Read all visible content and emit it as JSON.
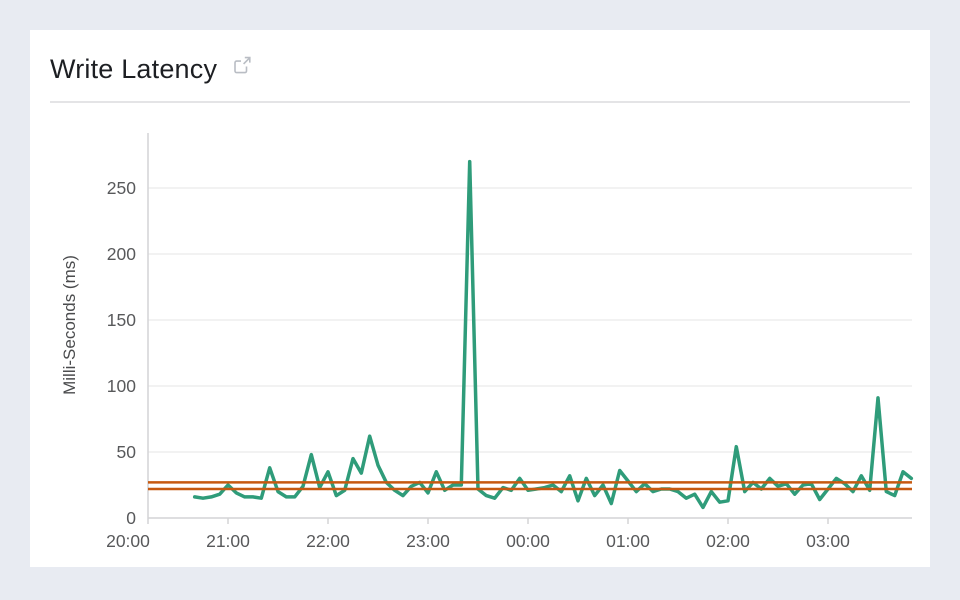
{
  "header": {
    "title": "Write Latency"
  },
  "colors": {
    "accent_line": "#2f9c7a",
    "threshold": "#c65911",
    "grid": "#ededed",
    "axis": "#d4d4d6",
    "tick_text": "#58595b",
    "axis_title_text": "#4a4b4d",
    "icon": "#b9bdc4"
  },
  "chart_data": {
    "type": "line",
    "title": "Write Latency",
    "xlabel": "",
    "ylabel": "Milli-Seconds (ms)",
    "ylim": [
      0,
      275
    ],
    "yticks": [
      0,
      50,
      100,
      150,
      200,
      250
    ],
    "xticks": [
      "20:00",
      "21:00",
      "22:00",
      "23:00",
      "00:00",
      "01:00",
      "02:00",
      "03:00"
    ],
    "grid": "horizontal-only",
    "legend_position": "none",
    "threshold_lines": [
      {
        "name": "upper-threshold",
        "value": 27,
        "color": "#c65911"
      },
      {
        "name": "lower-threshold",
        "value": 22,
        "color": "#c65911"
      }
    ],
    "series": [
      {
        "name": "Write Latency",
        "color": "#2f9c7a",
        "x": [
          "20:40",
          "20:45",
          "20:50",
          "20:55",
          "21:00",
          "21:05",
          "21:10",
          "21:15",
          "21:20",
          "21:25",
          "21:30",
          "21:35",
          "21:40",
          "21:45",
          "21:50",
          "21:55",
          "22:00",
          "22:05",
          "22:10",
          "22:15",
          "22:20",
          "22:25",
          "22:30",
          "22:35",
          "22:40",
          "22:45",
          "22:50",
          "22:55",
          "23:00",
          "23:05",
          "23:10",
          "23:15",
          "23:20",
          "23:25",
          "23:30",
          "23:35",
          "23:40",
          "23:45",
          "23:50",
          "23:55",
          "00:00",
          "00:05",
          "00:10",
          "00:15",
          "00:20",
          "00:25",
          "00:30",
          "00:35",
          "00:40",
          "00:45",
          "00:50",
          "00:55",
          "01:00",
          "01:05",
          "01:10",
          "01:15",
          "01:20",
          "01:25",
          "01:30",
          "01:35",
          "01:40",
          "01:45",
          "01:50",
          "01:55",
          "02:00",
          "02:05",
          "02:10",
          "02:15",
          "02:20",
          "02:25",
          "02:30",
          "02:35",
          "02:40",
          "02:45",
          "02:50",
          "02:55",
          "03:00",
          "03:05",
          "03:10",
          "03:15",
          "03:20",
          "03:25",
          "03:30",
          "03:35",
          "03:40",
          "03:45",
          "03:50"
        ],
        "values": [
          16,
          15,
          16,
          18,
          25,
          19,
          16,
          16,
          15,
          38,
          20,
          16,
          16,
          24,
          48,
          23,
          35,
          17,
          21,
          45,
          34,
          62,
          40,
          27,
          21,
          17,
          24,
          27,
          19,
          35,
          21,
          25,
          25,
          270,
          22,
          17,
          15,
          23,
          21,
          30,
          21,
          22,
          23,
          25,
          20,
          32,
          13,
          30,
          17,
          25,
          11,
          36,
          28,
          20,
          26,
          20,
          22,
          22,
          20,
          15,
          18,
          8,
          20,
          12,
          13,
          54,
          20,
          27,
          22,
          30,
          24,
          26,
          18,
          25,
          26,
          14,
          22,
          30,
          26,
          20,
          32,
          21,
          91,
          20,
          17,
          35,
          30
        ]
      }
    ]
  }
}
